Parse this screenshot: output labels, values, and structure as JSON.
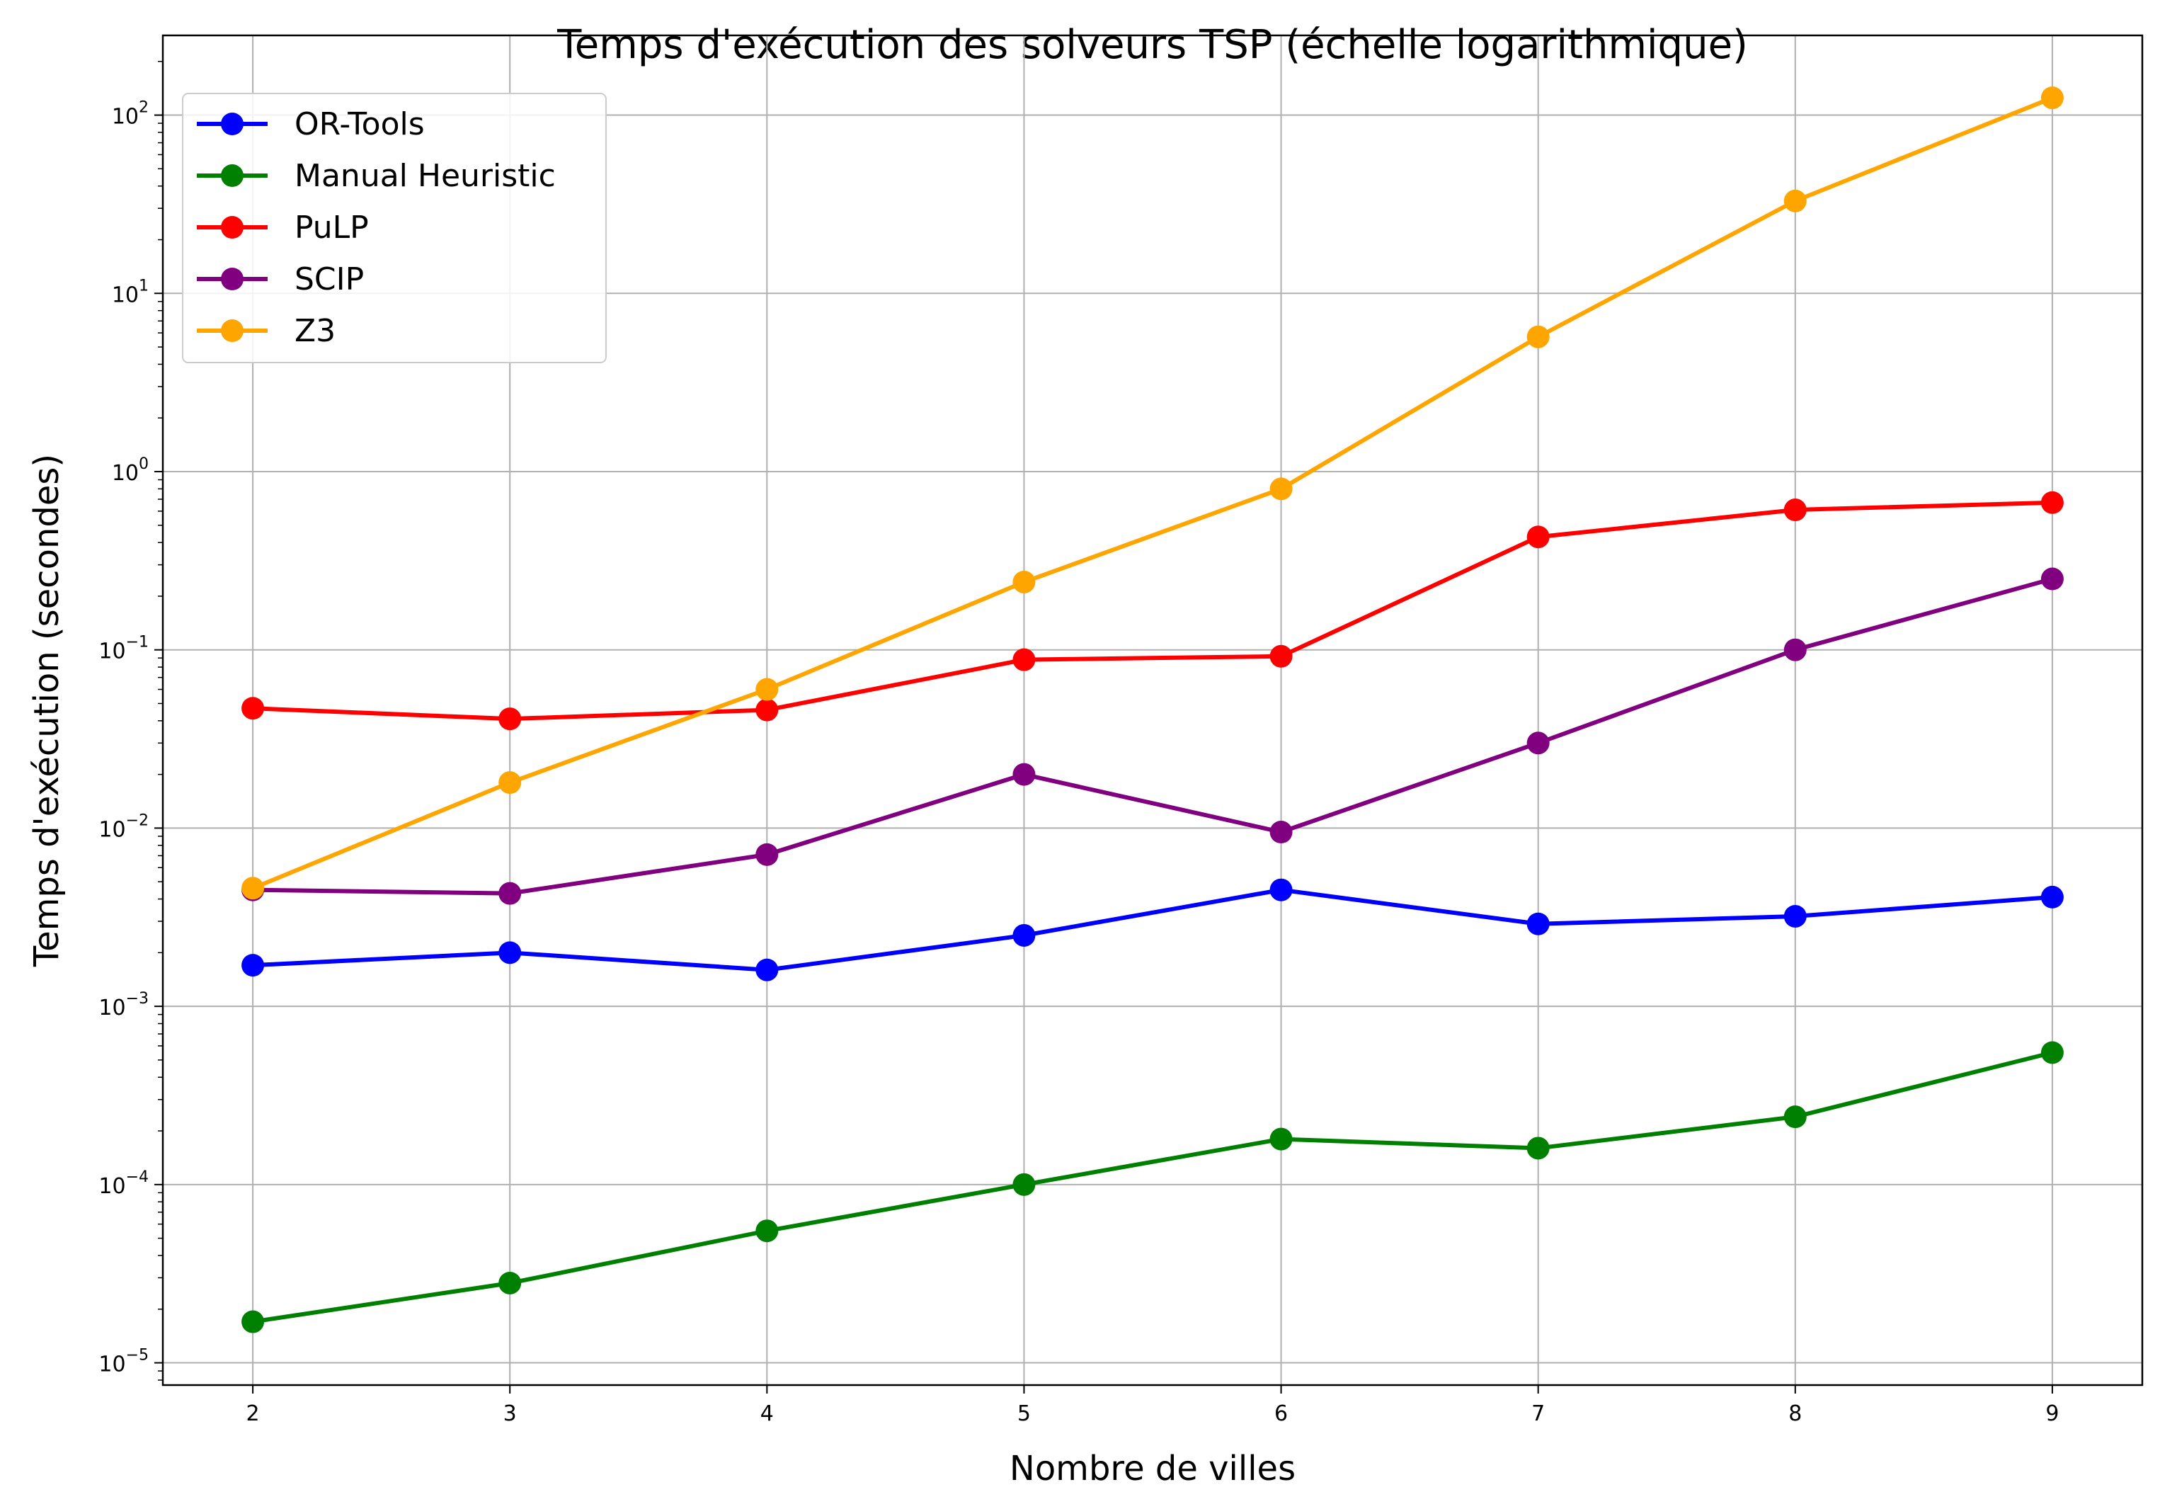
{
  "chart_data": {
    "type": "line",
    "title": "Temps d'exécution des solveurs TSP (échelle logarithmique)",
    "xlabel": "Nombre de villes",
    "ylabel": "Temps d'exécution (secondes)",
    "y_scale": "log",
    "grid": true,
    "legend_position": "top-left",
    "xlim": [
      1.65,
      9.35
    ],
    "ylim": [
      7.5e-06,
      280
    ],
    "x": [
      2,
      3,
      4,
      5,
      6,
      7,
      8,
      9
    ],
    "x_ticks": [
      2,
      3,
      4,
      5,
      6,
      7,
      8,
      9
    ],
    "y_ticks": [
      {
        "value": 1e-05,
        "base": "10",
        "exp": "−5"
      },
      {
        "value": 0.0001,
        "base": "10",
        "exp": "−4"
      },
      {
        "value": 0.001,
        "base": "10",
        "exp": "−3"
      },
      {
        "value": 0.01,
        "base": "10",
        "exp": "−2"
      },
      {
        "value": 0.1,
        "base": "10",
        "exp": "−1"
      },
      {
        "value": 1,
        "base": "10",
        "exp": "0"
      },
      {
        "value": 10,
        "base": "10",
        "exp": "1"
      },
      {
        "value": 100,
        "base": "10",
        "exp": "2"
      }
    ],
    "series": [
      {
        "name": "OR-Tools",
        "color": "#0000ff",
        "values": [
          0.0017,
          0.002,
          0.0016,
          0.0025,
          0.0045,
          0.0029,
          0.0032,
          0.0041
        ]
      },
      {
        "name": "Manual Heuristic",
        "color": "#008000",
        "values": [
          1.7e-05,
          2.8e-05,
          5.5e-05,
          0.0001,
          0.00018,
          0.00016,
          0.00024,
          0.00055
        ]
      },
      {
        "name": "PuLP",
        "color": "#ff0000",
        "values": [
          0.047,
          0.041,
          0.046,
          0.088,
          0.092,
          0.43,
          0.61,
          0.67
        ]
      },
      {
        "name": "SCIP",
        "color": "#800080",
        "values": [
          0.0045,
          0.0043,
          0.0071,
          0.02,
          0.0095,
          0.03,
          0.1,
          0.25
        ]
      },
      {
        "name": "Z3",
        "color": "#ffa500",
        "values": [
          0.0046,
          0.018,
          0.06,
          0.24,
          0.8,
          5.7,
          33,
          125
        ]
      }
    ]
  }
}
